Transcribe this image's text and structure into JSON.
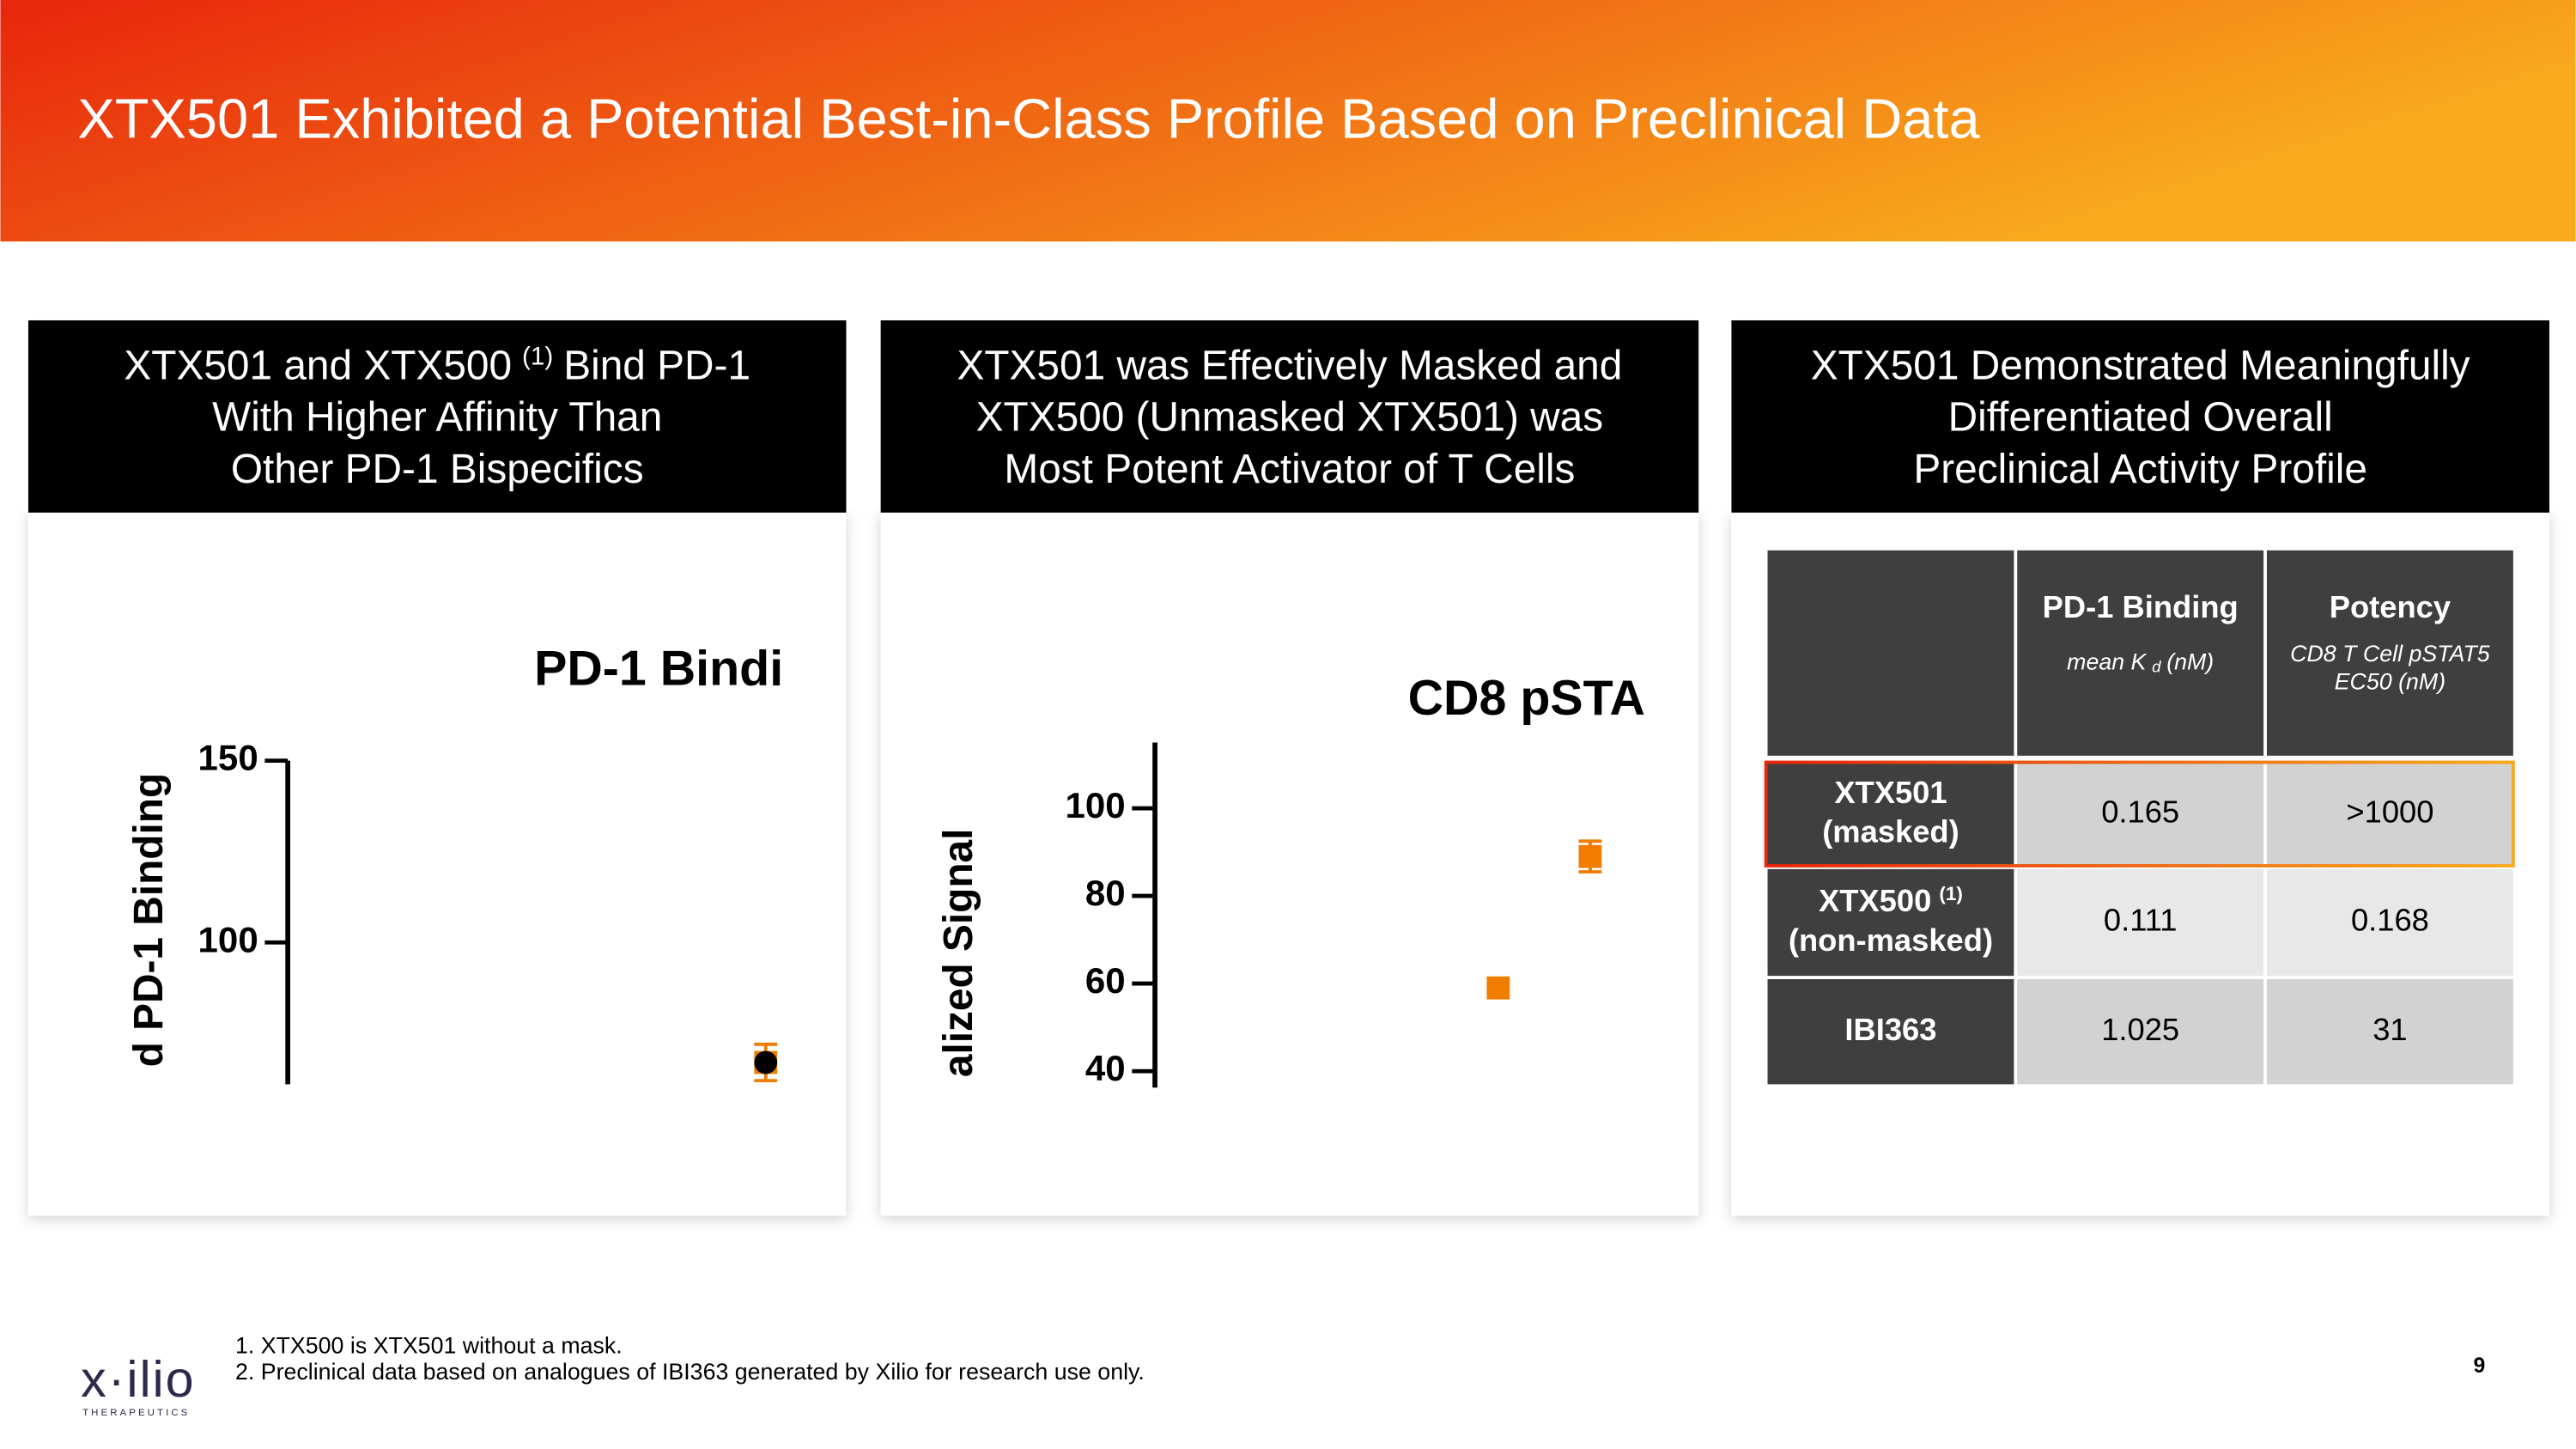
{
  "title": "XTX501 Exhibited a Potential Best-in-Class Profile Based on Preclinical Data",
  "panels": [
    {
      "heading": [
        [
          {
            "text": "XTX501 and XTX500"
          },
          {
            "text": "(1)",
            "sup": true
          },
          {
            "text": "Bind PD-1"
          }
        ],
        [
          {
            "text": "With Higher Affinity Than"
          }
        ],
        [
          {
            "text": "Other PD-1 Bispecifics"
          }
        ]
      ],
      "chart": {
        "type": "dot",
        "title": "PD-1 Bindi",
        "y_label": "d  PD-1 Binding",
        "ylim": [
          61,
          150
        ],
        "yticks": [
          100,
          150
        ],
        "series": [
          {
            "color": "#f07c00",
            "marker": "square",
            "values": [
              67
            ],
            "errors": [
              5
            ]
          },
          {
            "color": "#000000",
            "marker": "circle",
            "values": [
              67
            ]
          }
        ]
      }
    },
    {
      "heading": [
        [
          {
            "text": "XTX501 was Effectively Masked and"
          }
        ],
        [
          {
            "text": "XTX500 (Unmasked XTX501) was"
          }
        ],
        [
          {
            "text": "Most Potent Activator of T Cells"
          }
        ]
      ],
      "chart": {
        "type": "dot",
        "title": "CD8 pSTA",
        "y_label": "alized Signal",
        "ylim": [
          37,
          115
        ],
        "yticks": [
          40,
          60,
          80,
          100
        ],
        "series": [
          {
            "color": "#f07c00",
            "marker": "square",
            "values": [
              59
            ]
          },
          {
            "color": "#f07c00",
            "marker": "square",
            "values": [
              89
            ],
            "errors": [
              3.5
            ]
          }
        ]
      }
    },
    {
      "heading": [
        [
          {
            "text": "XTX501 Demonstrated Meaningfully"
          }
        ],
        [
          {
            "text": "Differentiated Overall"
          }
        ],
        [
          {
            "text": "Preclinical Activity Profile"
          }
        ]
      ],
      "table": {
        "columns": [
          {
            "title": "PD-1 Binding",
            "sub": [
              [
                {
                  "text": "mean K"
                },
                {
                  "text": "d",
                  "subscript": true
                },
                {
                  "text": "(nM)"
                }
              ]
            ]
          },
          {
            "title": "Potency",
            "sub": [
              [
                {
                  "text": "CD8 T Cell pSTAT5"
                }
              ],
              [
                {
                  "text": "EC50 (nM)"
                }
              ]
            ]
          }
        ],
        "rows": [
          {
            "label": [
              [
                {
                  "text": "XTX501"
                }
              ],
              [
                {
                  "text": "(masked)"
                }
              ]
            ],
            "cells": [
              0.165,
              ">1000"
            ],
            "highlight": true
          },
          {
            "label": [
              [
                {
                  "text": "XTX500"
                },
                {
                  "text": "(1)",
                  "sup": true
                }
              ],
              [
                {
                  "text": "(non-masked)"
                }
              ]
            ],
            "cells": [
              0.111,
              0.168
            ]
          },
          {
            "label": [
              [
                {
                  "text": "IBI363"
                }
              ]
            ],
            "cells": [
              1.025,
              31
            ]
          }
        ]
      }
    }
  ],
  "footnotes": [
    "1. XTX500 is XTX501 without a mask.",
    "2. Preclinical data based on analogues of IBI363 generated by Xilio for research use only."
  ],
  "page_number": 9,
  "logo": {
    "name": "x·ilio",
    "tagline": "THERAPEUTICS"
  }
}
